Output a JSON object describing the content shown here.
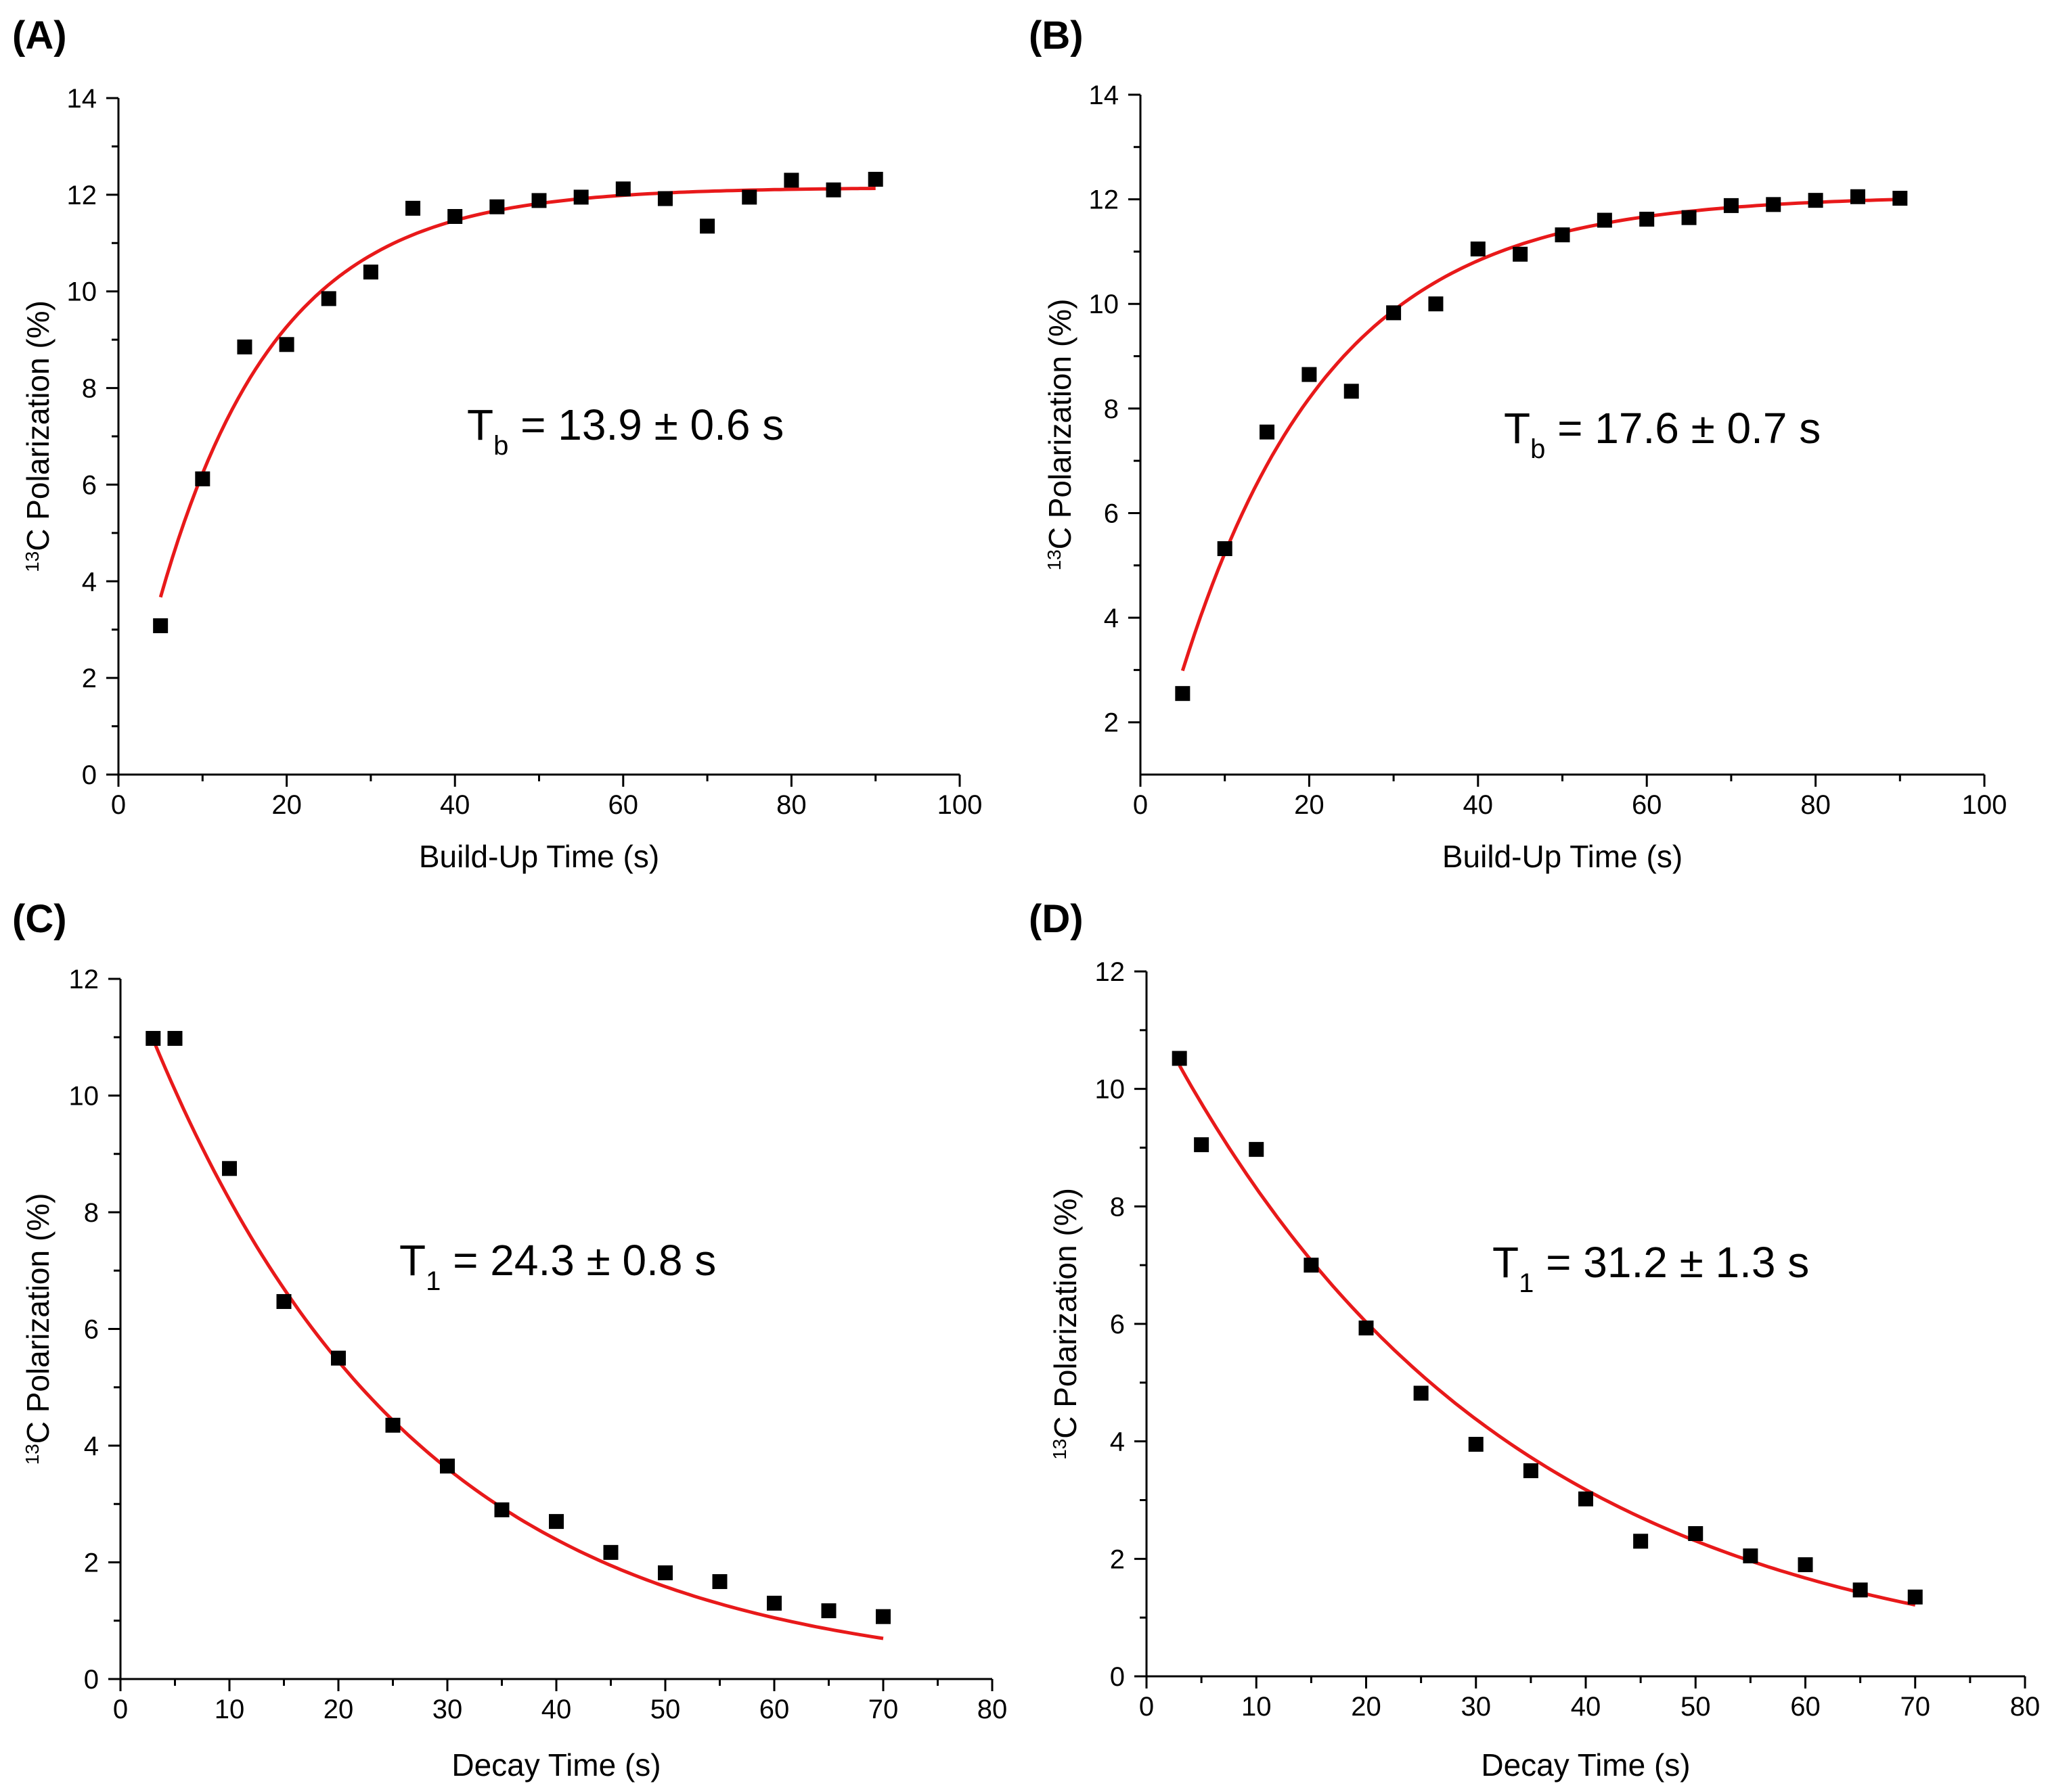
{
  "chart_data": [
    {
      "type": "scatter",
      "panel": "(A)",
      "xlabel": "Build-Up Time (s)",
      "ylabel_sup": "13",
      "ylabel": "C Polarization (%)",
      "xlim": [
        0,
        100
      ],
      "ylim": [
        0,
        14
      ],
      "xticks": [
        0,
        20,
        40,
        60,
        80,
        100
      ],
      "yticks": [
        0,
        2,
        4,
        6,
        8,
        10,
        12,
        14
      ],
      "annotation": {
        "symbol": "T",
        "subscript": "b",
        "text": " = 13.9 ± 0.6 s"
      },
      "series": [
        {
          "name": "data",
          "x": [
            5,
            10,
            15,
            20,
            25,
            30,
            35,
            40,
            45,
            50,
            55,
            60,
            65,
            70,
            75,
            80,
            85,
            90
          ],
          "y": [
            3.08,
            6.12,
            8.85,
            8.9,
            9.85,
            10.4,
            11.72,
            11.55,
            11.75,
            11.88,
            11.95,
            12.12,
            11.92,
            11.35,
            11.95,
            12.3,
            12.1,
            12.32
          ]
        }
      ],
      "fit": {
        "model": "buildup",
        "A": 12.15,
        "tau": 13.9,
        "x0": 5,
        "x_range": [
          5,
          90
        ]
      },
      "grid": false
    },
    {
      "type": "scatter",
      "panel": "(B)",
      "xlabel": "Build-Up Time (s)",
      "ylabel_sup": "13",
      "ylabel": "C Polarization (%)",
      "xlim": [
        0,
        100
      ],
      "ylim": [
        1,
        14
      ],
      "xticks": [
        0,
        20,
        40,
        60,
        80,
        100
      ],
      "yticks": [
        2,
        4,
        6,
        8,
        10,
        12,
        14
      ],
      "annotation": {
        "symbol": "T",
        "subscript": "b",
        "text": " = 17.6 ± 0.7 s"
      },
      "series": [
        {
          "name": "data",
          "x": [
            5,
            10,
            15,
            20,
            25,
            30,
            35,
            40,
            45,
            50,
            55,
            60,
            65,
            70,
            75,
            80,
            85,
            90
          ],
          "y": [
            2.55,
            5.32,
            7.55,
            8.65,
            8.33,
            9.83,
            10.0,
            11.05,
            10.95,
            11.32,
            11.6,
            11.62,
            11.65,
            11.88,
            11.9,
            11.98,
            12.05,
            12.02
          ]
        }
      ],
      "fit": {
        "model": "buildup",
        "A": 12.07,
        "tau": 17.6,
        "x0": 5,
        "x_range": [
          5,
          90
        ]
      },
      "grid": false
    },
    {
      "type": "scatter",
      "panel": "(C)",
      "xlabel": "Decay Time (s)",
      "ylabel_sup": "13",
      "ylabel": "C Polarization (%)",
      "xlim": [
        0,
        80
      ],
      "ylim": [
        0,
        12
      ],
      "xticks": [
        0,
        10,
        20,
        30,
        40,
        50,
        60,
        70,
        80
      ],
      "yticks": [
        0,
        2,
        4,
        6,
        8,
        10,
        12
      ],
      "annotation": {
        "symbol": "T",
        "subscript": "1",
        "text": " = 24.3 ± 0.8 s"
      },
      "series": [
        {
          "name": "data",
          "x": [
            3,
            5,
            10,
            15,
            20,
            25,
            30,
            35,
            40,
            45,
            50,
            55,
            60,
            65,
            70
          ],
          "y": [
            10.98,
            10.98,
            8.75,
            6.47,
            5.5,
            4.35,
            3.65,
            2.9,
            2.7,
            2.17,
            1.82,
            1.67,
            1.3,
            1.17,
            1.07
          ]
        }
      ],
      "fit": {
        "model": "decay",
        "A": 12.4,
        "tau": 24.3,
        "x_range": [
          3,
          70
        ]
      },
      "grid": false
    },
    {
      "type": "scatter",
      "panel": "(D)",
      "xlabel": "Decay Time (s)",
      "ylabel_sup": "13",
      "ylabel": "C Polarization (%)",
      "xlim": [
        0,
        80
      ],
      "ylim": [
        0,
        12
      ],
      "xticks": [
        0,
        10,
        20,
        30,
        40,
        50,
        60,
        70,
        80
      ],
      "yticks": [
        0,
        2,
        4,
        6,
        8,
        10,
        12
      ],
      "annotation": {
        "symbol": "T",
        "subscript": "1",
        "text": " = 31.2 ± 1.3 s"
      },
      "series": [
        {
          "name": "data",
          "x": [
            3,
            5,
            10,
            15,
            20,
            25,
            30,
            35,
            40,
            45,
            50,
            55,
            60,
            65,
            70
          ],
          "y": [
            10.52,
            9.05,
            8.97,
            7.0,
            5.93,
            4.82,
            3.95,
            3.5,
            3.02,
            2.3,
            2.43,
            2.05,
            1.9,
            1.47,
            1.35
          ]
        }
      ],
      "fit": {
        "model": "decay",
        "A": 11.45,
        "tau": 31.2,
        "x_range": [
          3,
          70
        ]
      },
      "grid": false
    }
  ]
}
